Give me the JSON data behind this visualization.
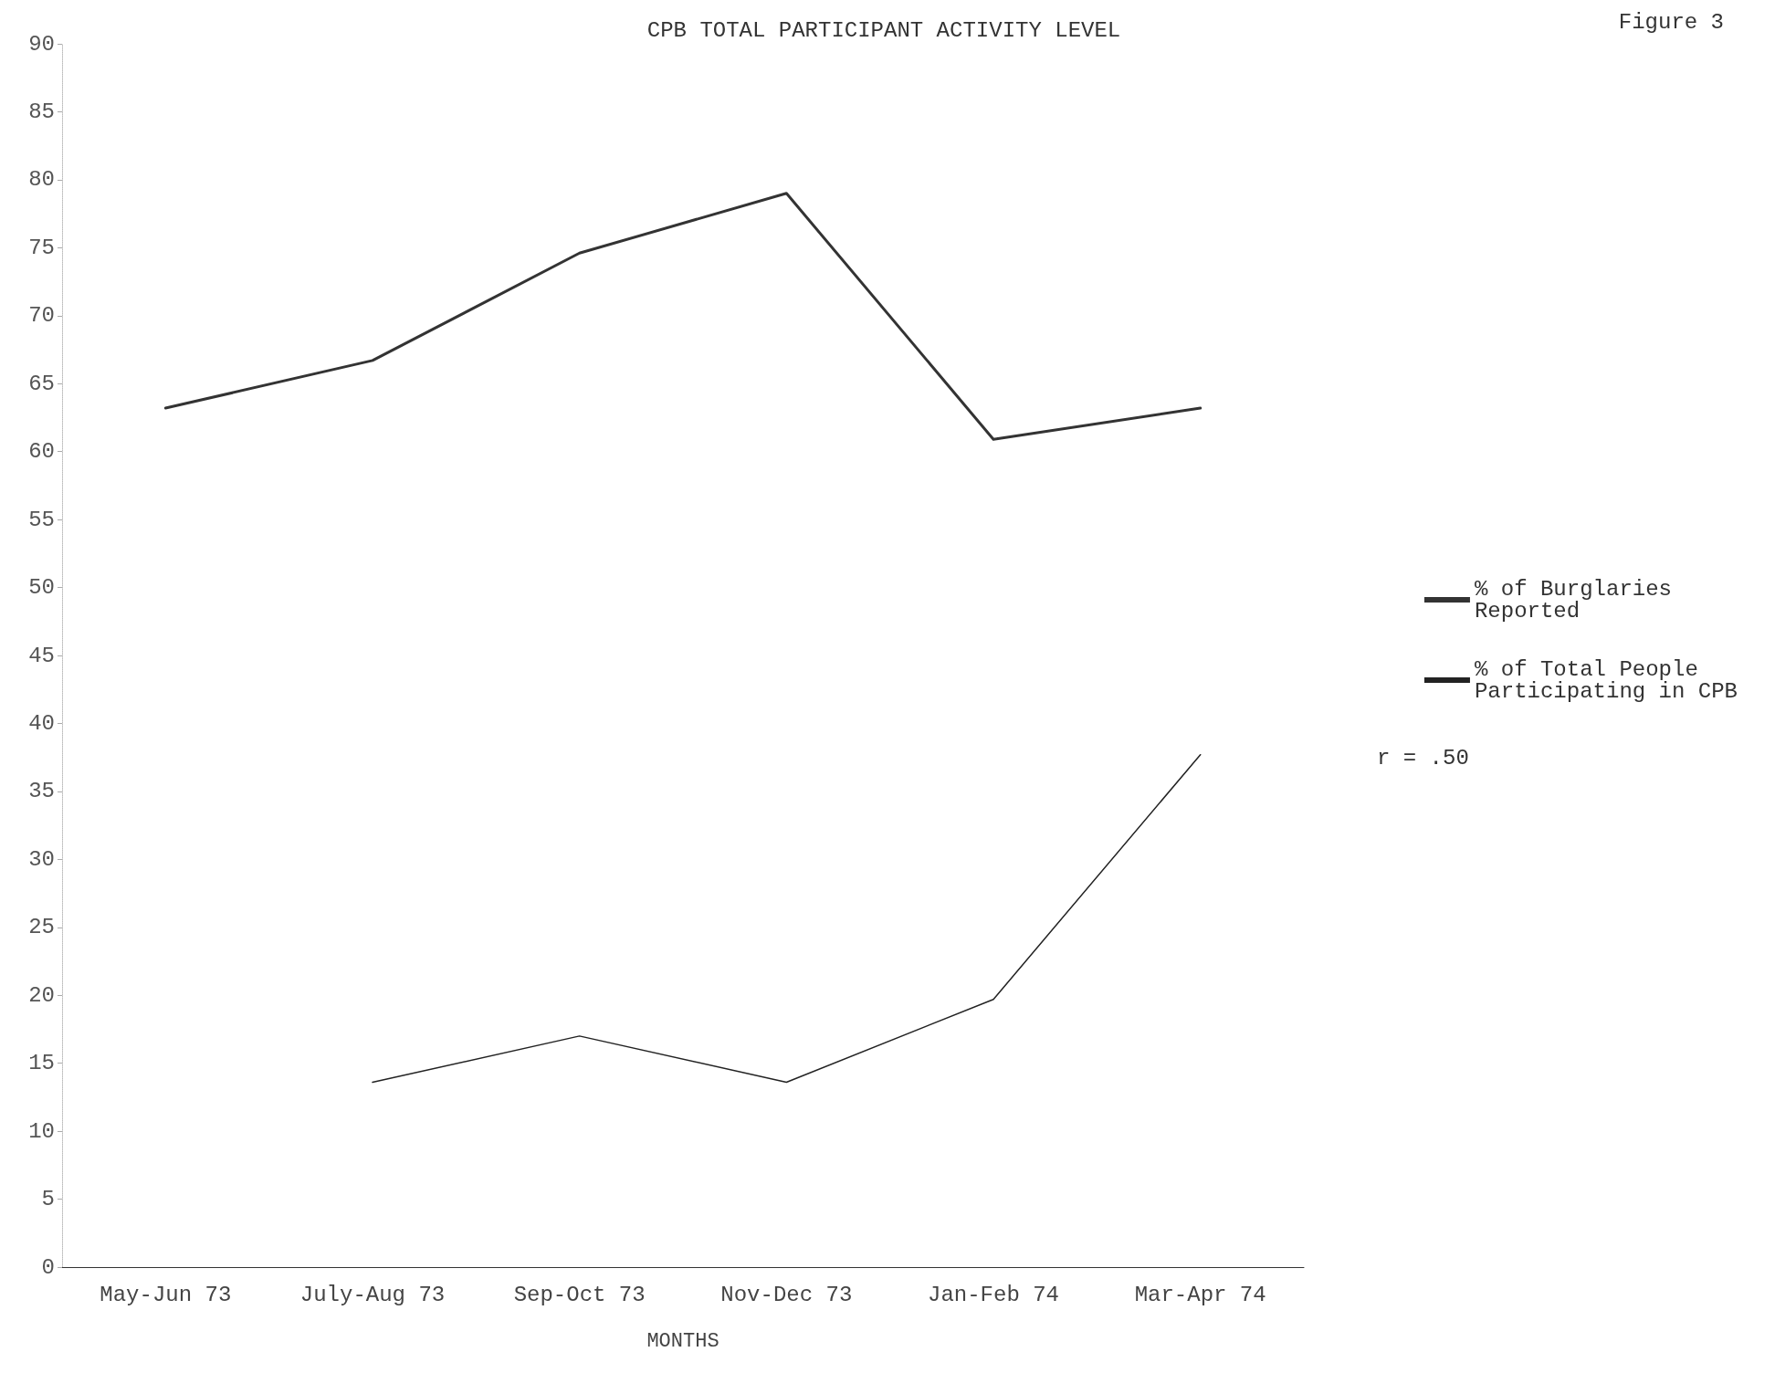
{
  "chart_data": {
    "type": "line",
    "title": "CPB TOTAL PARTICIPANT ACTIVITY LEVEL",
    "xlabel": "MONTHS",
    "categories": [
      "May-Jun 73",
      "July-Aug 73",
      "Sep-Oct 73",
      "Nov-Dec 73",
      "Jan-Feb 74",
      "Mar-Apr 74"
    ],
    "series": [
      {
        "name": "% of Burglaries Reported",
        "color": "#333333",
        "values": [
          63.2,
          66.7,
          74.6,
          79,
          60.9,
          63.2
        ]
      },
      {
        "name": "% of Total People Participating in CPB",
        "color": "#222222",
        "values": [
          null,
          13.6,
          17,
          13.6,
          19.7,
          37.7
        ]
      }
    ],
    "ylim": [
      0,
      90
    ],
    "yticks": [
      0,
      5,
      10,
      15,
      20,
      25,
      30,
      35,
      40,
      45,
      50,
      55,
      60,
      65,
      70,
      75,
      80,
      85,
      90
    ],
    "grid": false,
    "legend": "right",
    "line_style": "solid",
    "annotations": [
      "r = .50",
      "Figure 3"
    ]
  }
}
